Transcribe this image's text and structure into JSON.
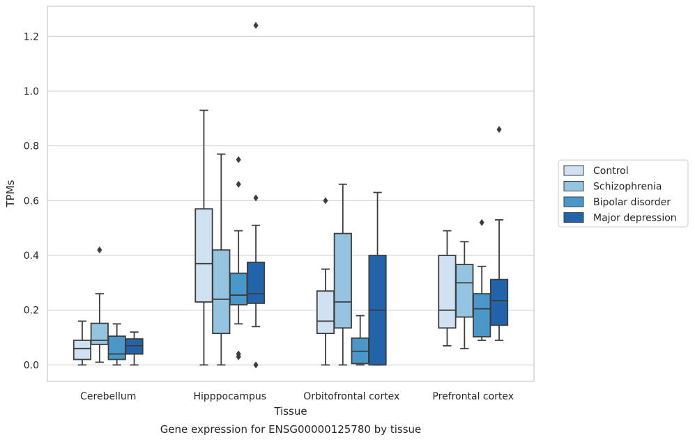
{
  "chart_data": {
    "type": "boxplot",
    "title": "",
    "caption": "Gene expression for ENSG00000125780 by tissue",
    "xlabel": "Tissue",
    "ylabel": "TPMs",
    "ylim": [
      -0.06,
      1.31
    ],
    "yticks": [
      0.0,
      0.2,
      0.4,
      0.6,
      0.8,
      1.0,
      1.2
    ],
    "ytick_labels": [
      "0.0",
      "0.2",
      "0.4",
      "0.6",
      "0.8",
      "1.0",
      "1.2"
    ],
    "grid": "horizontal",
    "legend_position": "right-outside",
    "categories": [
      "Cerebellum",
      "Hipppocampus",
      "Orbitofrontal cortex",
      "Prefrontal cortex"
    ],
    "series": [
      {
        "name": "Control",
        "color": "#d0e1f2",
        "boxes": [
          {
            "whislo": 0.0,
            "q1": 0.02,
            "med": 0.06,
            "q3": 0.09,
            "whishi": 0.16,
            "fliers": []
          },
          {
            "whislo": 0.0,
            "q1": 0.23,
            "med": 0.37,
            "q3": 0.57,
            "whishi": 0.93,
            "fliers": []
          },
          {
            "whislo": 0.0,
            "q1": 0.115,
            "med": 0.16,
            "q3": 0.27,
            "whishi": 0.35,
            "fliers": [
              0.6
            ]
          },
          {
            "whislo": 0.07,
            "q1": 0.135,
            "med": 0.2,
            "q3": 0.4,
            "whishi": 0.49,
            "fliers": []
          }
        ]
      },
      {
        "name": "Schizophrenia",
        "color": "#94c4df",
        "boxes": [
          {
            "whislo": 0.01,
            "q1": 0.075,
            "med": 0.09,
            "q3": 0.152,
            "whishi": 0.26,
            "fliers": [
              0.42
            ]
          },
          {
            "whislo": 0.0,
            "q1": 0.115,
            "med": 0.24,
            "q3": 0.42,
            "whishi": 0.77,
            "fliers": []
          },
          {
            "whislo": 0.0,
            "q1": 0.135,
            "med": 0.23,
            "q3": 0.48,
            "whishi": 0.66,
            "fliers": []
          },
          {
            "whislo": 0.06,
            "q1": 0.175,
            "med": 0.3,
            "q3": 0.367,
            "whishi": 0.45,
            "fliers": []
          }
        ]
      },
      {
        "name": "Bipolar disorder",
        "color": "#4a98c9",
        "boxes": [
          {
            "whislo": 0.0,
            "q1": 0.02,
            "med": 0.04,
            "q3": 0.105,
            "whishi": 0.15,
            "fliers": []
          },
          {
            "whislo": 0.15,
            "q1": 0.22,
            "med": 0.255,
            "q3": 0.335,
            "whishi": 0.49,
            "fliers": [
              0.04,
              0.03,
              0.66,
              0.75
            ]
          },
          {
            "whislo": 0.0,
            "q1": 0.005,
            "med": 0.05,
            "q3": 0.098,
            "whishi": 0.18,
            "fliers": []
          },
          {
            "whislo": 0.09,
            "q1": 0.103,
            "med": 0.205,
            "q3": 0.26,
            "whishi": 0.36,
            "fliers": [
              0.52
            ]
          }
        ]
      },
      {
        "name": "Major depression",
        "color": "#2264aa",
        "boxes": [
          {
            "whislo": 0.0,
            "q1": 0.04,
            "med": 0.07,
            "q3": 0.095,
            "whishi": 0.12,
            "fliers": []
          },
          {
            "whislo": 0.14,
            "q1": 0.225,
            "med": 0.26,
            "q3": 0.375,
            "whishi": 0.51,
            "fliers": [
              0.0,
              0.61,
              1.24
            ]
          },
          {
            "whislo": 0.0,
            "q1": 0.0,
            "med": 0.2,
            "q3": 0.4,
            "whishi": 0.63,
            "fliers": []
          },
          {
            "whislo": 0.09,
            "q1": 0.145,
            "med": 0.235,
            "q3": 0.312,
            "whishi": 0.53,
            "fliers": [
              0.86
            ]
          }
        ]
      }
    ]
  },
  "colors": {
    "grid": "#cccccc",
    "frame": "#cccccc",
    "line": "#3d3d3d",
    "text": "#262626"
  }
}
